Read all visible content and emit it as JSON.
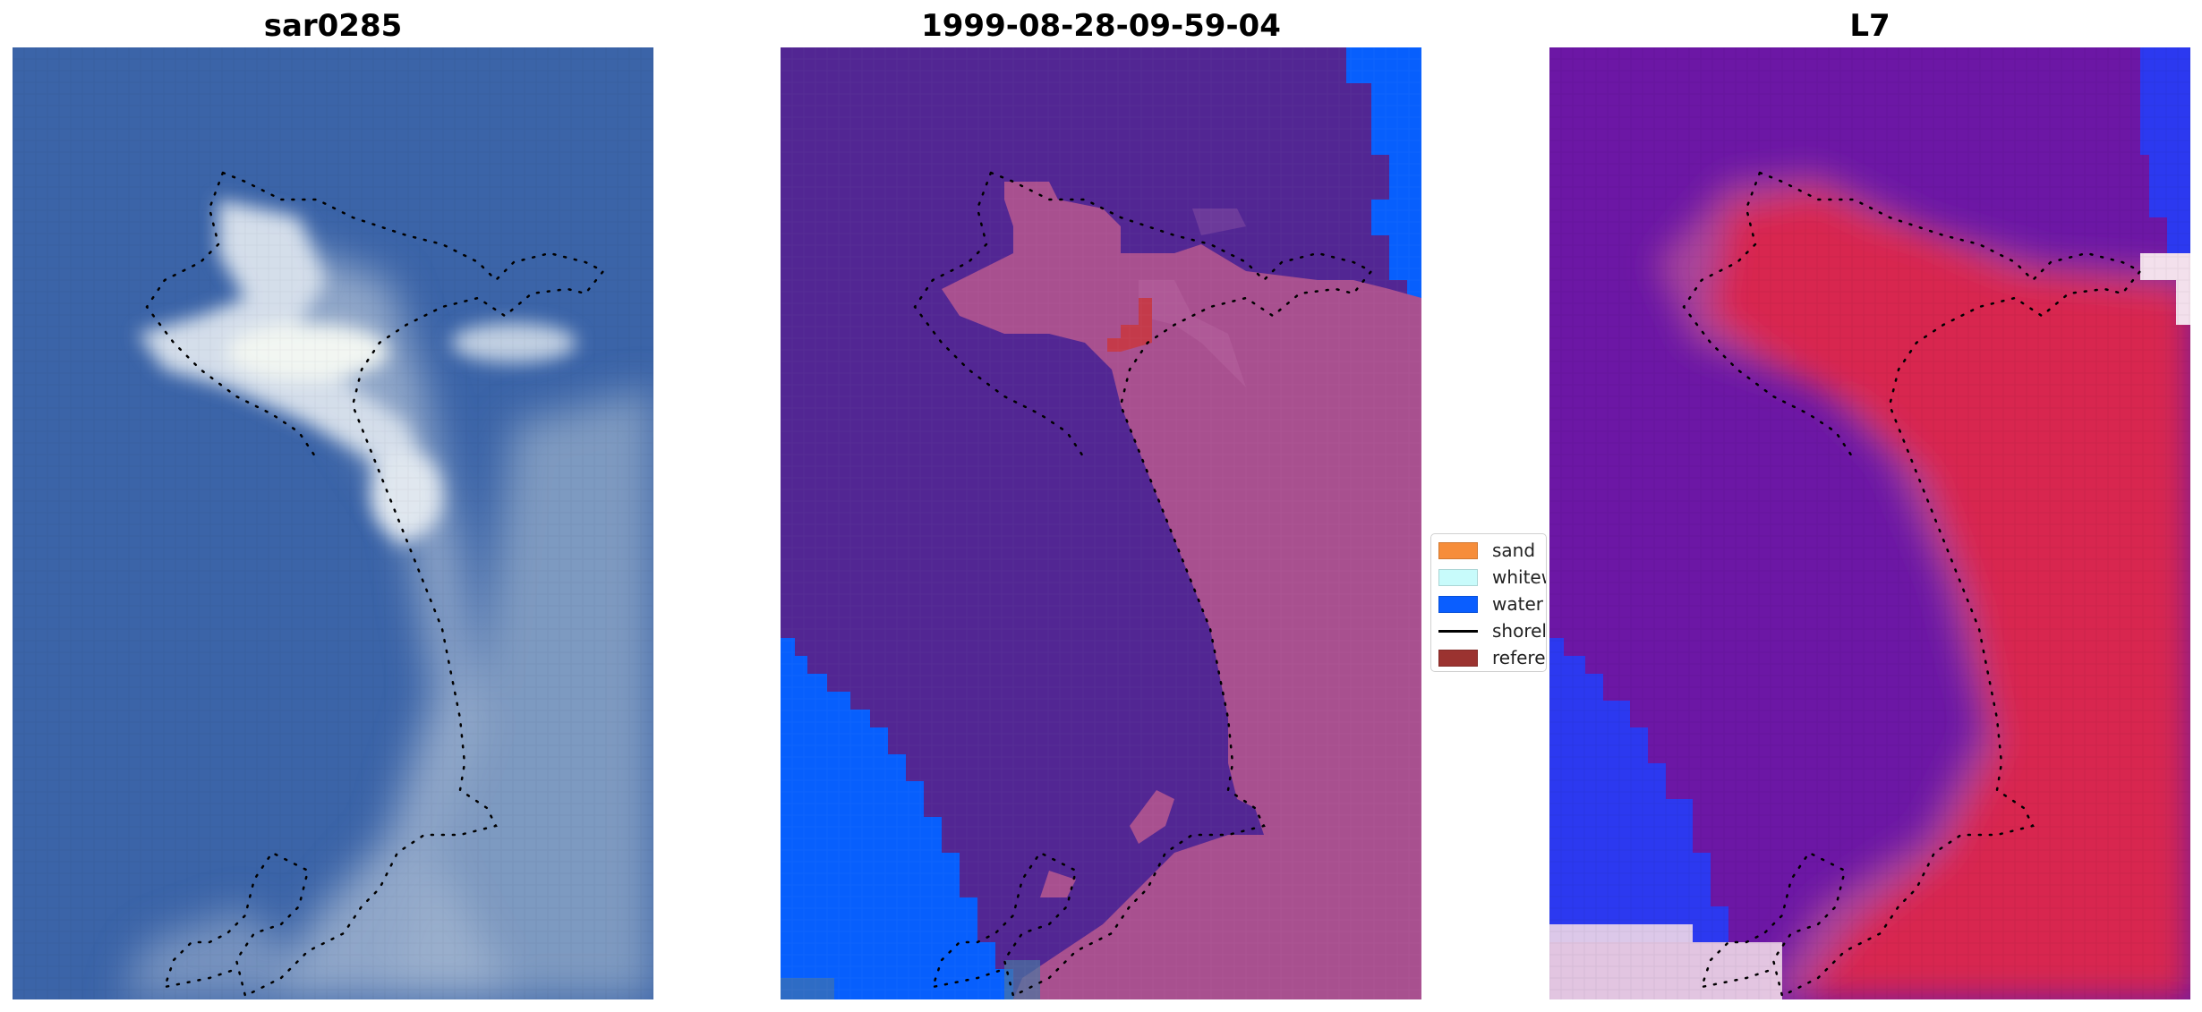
{
  "panels": [
    {
      "title": "sar0285"
    },
    {
      "title": "1999-08-28-09-59-04"
    },
    {
      "title": "L7"
    }
  ],
  "legend": {
    "items": [
      {
        "label": "sand",
        "color": "#f68d3a"
      },
      {
        "label": "whitewater",
        "color": "#c8fbfb"
      },
      {
        "label": "water",
        "color": "#0a5eff"
      },
      {
        "label": "shoreline",
        "color": "#000000"
      },
      {
        "label": "reference",
        "color": "#9b3330"
      }
    ]
  },
  "colors": {
    "rgb_water": "#3b64a8",
    "rgb_cloud": "#c9d6e6",
    "class_background": "#522693",
    "class_land": "#a8508f",
    "class_water": "#075ffd",
    "class_reference": "#c43a4a",
    "index_water": "#6c17a5",
    "index_land": "#d8264f",
    "index_neg": "#2c39f0"
  }
}
